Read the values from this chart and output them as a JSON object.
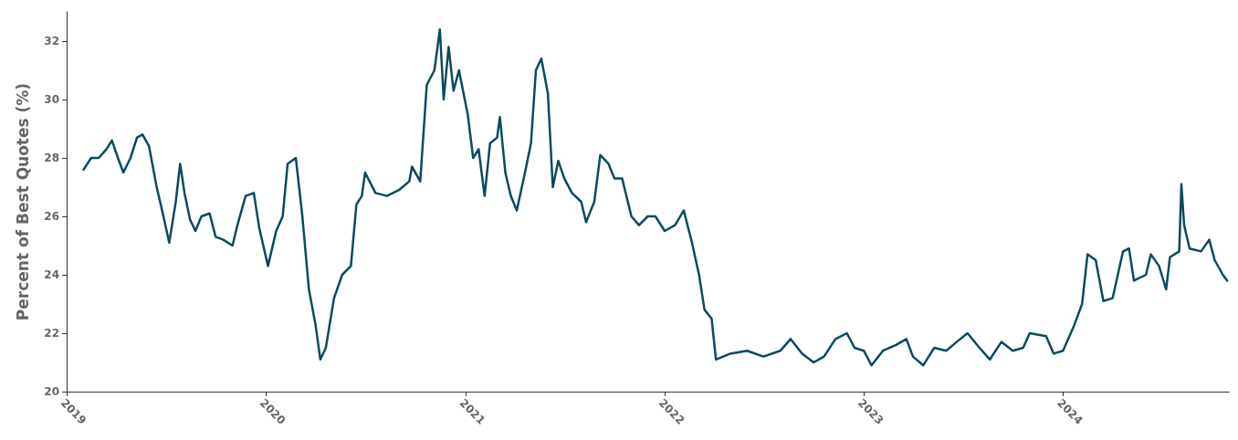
{
  "chart_data": {
    "type": "line",
    "ylabel": "Percent of Best Quotes (%)",
    "xlim": [
      "2019-01-01",
      "2024-10-31"
    ],
    "xticks": [
      "2019",
      "2020",
      "2021",
      "2022",
      "2023",
      "2024"
    ],
    "ylim": [
      20,
      33
    ],
    "yticks": [
      20,
      22,
      24,
      26,
      28,
      30,
      32
    ],
    "grid": false,
    "marker": "none",
    "line_style": "solid",
    "series": [
      {
        "color": "#0b4a5f",
        "x": [
          "2019-02-01",
          "2019-02-15",
          "2019-03-01",
          "2019-03-15",
          "2019-03-25",
          "2019-04-05",
          "2019-04-15",
          "2019-04-28",
          "2019-05-10",
          "2019-05-20",
          "2019-06-01",
          "2019-06-15",
          "2019-06-25",
          "2019-07-08",
          "2019-07-20",
          "2019-07-28",
          "2019-08-05",
          "2019-08-15",
          "2019-08-25",
          "2019-09-05",
          "2019-09-20",
          "2019-10-01",
          "2019-10-15",
          "2019-11-01",
          "2019-11-10",
          "2019-11-25",
          "2019-12-10",
          "2019-12-20",
          "2020-01-05",
          "2020-01-20",
          "2020-02-01",
          "2020-02-10",
          "2020-02-25",
          "2020-03-08",
          "2020-03-20",
          "2020-04-01",
          "2020-04-10",
          "2020-04-20",
          "2020-05-05",
          "2020-05-20",
          "2020-06-05",
          "2020-06-15",
          "2020-06-25",
          "2020-07-01",
          "2020-07-20",
          "2020-08-10",
          "2020-09-01",
          "2020-09-20",
          "2020-09-25",
          "2020-10-10",
          "2020-10-22",
          "2020-11-05",
          "2020-11-15",
          "2020-11-22",
          "2020-12-01",
          "2020-12-10",
          "2020-12-20",
          "2021-01-05",
          "2021-01-15",
          "2021-01-25",
          "2021-02-05",
          "2021-02-15",
          "2021-02-28",
          "2021-03-05",
          "2021-03-15",
          "2021-03-25",
          "2021-04-05",
          "2021-04-20",
          "2021-05-01",
          "2021-05-10",
          "2021-05-20",
          "2021-06-01",
          "2021-06-10",
          "2021-06-20",
          "2021-07-01",
          "2021-07-15",
          "2021-08-01",
          "2021-08-10",
          "2021-08-25",
          "2021-09-05",
          "2021-09-20",
          "2021-10-01",
          "2021-10-15",
          "2021-11-01",
          "2021-11-15",
          "2021-12-01",
          "2021-12-15",
          "2022-01-01",
          "2022-01-20",
          "2022-02-05",
          "2022-02-20",
          "2022-03-05",
          "2022-03-15",
          "2022-03-28",
          "2022-04-05",
          "2022-05-01",
          "2022-06-01",
          "2022-07-01",
          "2022-08-01",
          "2022-08-20",
          "2022-09-10",
          "2022-10-01",
          "2022-10-20",
          "2022-11-10",
          "2022-12-01",
          "2022-12-15",
          "2023-01-01",
          "2023-01-15",
          "2023-02-05",
          "2023-03-01",
          "2023-03-20",
          "2023-04-01",
          "2023-04-20",
          "2023-05-10",
          "2023-06-01",
          "2023-06-20",
          "2023-07-10",
          "2023-08-01",
          "2023-08-20",
          "2023-09-10",
          "2023-10-01",
          "2023-10-20",
          "2023-11-01",
          "2023-12-01",
          "2023-12-15",
          "2024-01-01",
          "2024-01-20",
          "2024-02-05",
          "2024-02-15",
          "2024-03-01",
          "2024-03-15",
          "2024-04-01",
          "2024-04-20",
          "2024-05-01",
          "2024-05-10",
          "2024-06-01",
          "2024-06-10",
          "2024-06-25",
          "2024-07-08",
          "2024-07-15",
          "2024-08-01",
          "2024-08-05",
          "2024-08-10",
          "2024-08-20",
          "2024-09-10",
          "2024-09-25",
          "2024-10-05",
          "2024-10-20",
          "2024-10-28"
        ],
        "values": [
          27.6,
          28.0,
          28.0,
          28.3,
          28.6,
          28.0,
          27.5,
          28.0,
          28.7,
          28.8,
          28.4,
          27.0,
          26.2,
          25.1,
          26.5,
          27.8,
          26.8,
          25.9,
          25.5,
          26.0,
          26.1,
          25.3,
          25.2,
          25.0,
          25.7,
          26.7,
          26.8,
          25.6,
          24.3,
          25.5,
          26.0,
          27.8,
          28.0,
          26.0,
          23.5,
          22.3,
          21.1,
          21.5,
          23.2,
          24.0,
          24.3,
          26.4,
          26.7,
          27.5,
          26.8,
          26.7,
          26.9,
          27.2,
          27.7,
          27.2,
          30.5,
          31.0,
          32.4,
          30.0,
          31.8,
          30.3,
          31.0,
          29.5,
          28.0,
          28.3,
          26.7,
          28.5,
          28.7,
          29.4,
          27.5,
          26.7,
          26.2,
          27.5,
          28.5,
          31.0,
          31.4,
          30.2,
          27.0,
          27.9,
          27.3,
          26.8,
          26.5,
          25.8,
          26.5,
          28.1,
          27.8,
          27.3,
          27.3,
          26.0,
          25.7,
          26.0,
          26.0,
          25.5,
          25.7,
          26.2,
          25.1,
          24.0,
          22.8,
          22.5,
          21.1,
          21.3,
          21.4,
          21.2,
          21.4,
          21.8,
          21.3,
          21.0,
          21.2,
          21.8,
          22.0,
          21.5,
          21.4,
          20.9,
          21.4,
          21.6,
          21.8,
          21.2,
          20.9,
          21.5,
          21.4,
          21.7,
          22.0,
          21.5,
          21.1,
          21.7,
          21.4,
          21.5,
          22.0,
          21.9,
          21.3,
          21.4,
          22.2,
          23.0,
          24.7,
          24.5,
          23.1,
          23.2,
          24.8,
          24.9,
          23.8,
          24.0,
          24.7,
          24.3,
          23.5,
          24.6,
          24.8,
          27.1,
          25.7,
          24.9,
          24.8,
          25.2,
          24.5,
          24.0,
          23.8
        ]
      }
    ]
  }
}
